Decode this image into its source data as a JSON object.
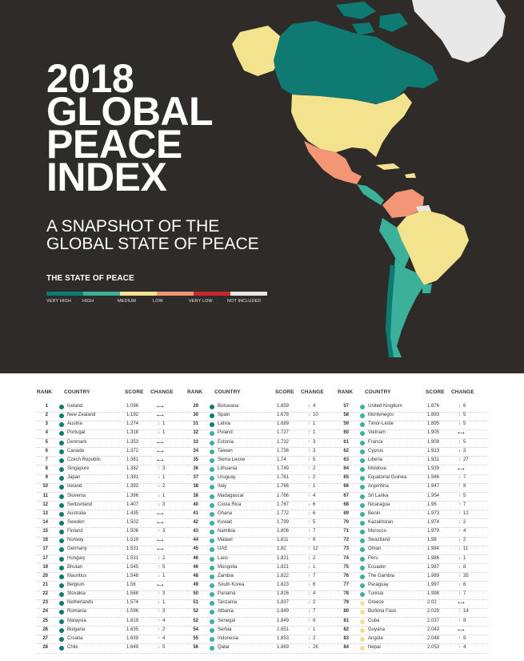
{
  "header": {
    "title_lines": [
      "2018",
      "GLOBAL",
      "PEACE",
      "INDEX"
    ],
    "subtitle_lines": [
      "A SNAPSHOT OF THE",
      "GLOBAL STATE OF PEACE"
    ],
    "legend_title": "THE STATE OF PEACE",
    "legend": [
      {
        "label": "VERY HIGH",
        "color": "#0e7a72"
      },
      {
        "label": "HIGH",
        "color": "#3bb199"
      },
      {
        "label": "MEDIUM",
        "color": "#f3e38e"
      },
      {
        "label": "LOW",
        "color": "#f29676"
      },
      {
        "label": "VERY LOW",
        "color": "#c8272e"
      },
      {
        "label": "NOT INCLUDED",
        "color": "#e8e8e8"
      }
    ]
  },
  "table": {
    "headers": {
      "rank": "RANK",
      "country": "COUNTRY",
      "score": "SCORE",
      "change": "CHANGE"
    },
    "columns": [
      [
        {
          "rank": "1",
          "country": "Iceland",
          "score": "1.096",
          "change": "",
          "dir": "flat",
          "color": "#0e7a72"
        },
        {
          "rank": "2",
          "country": "New Zealand",
          "score": "1.192",
          "change": "",
          "dir": "flat",
          "color": "#0e7a72"
        },
        {
          "rank": "3",
          "country": "Austria",
          "score": "1.274",
          "change": "1",
          "dir": "down",
          "color": "#0e7a72"
        },
        {
          "rank": "4",
          "country": "Portugal",
          "score": "1.318",
          "change": "1",
          "dir": "down",
          "color": "#0e7a72"
        },
        {
          "rank": "5",
          "country": "Denmark",
          "score": "1.353",
          "change": "",
          "dir": "flat",
          "color": "#0e7a72"
        },
        {
          "rank": "6",
          "country": "Canada",
          "score": "1.372",
          "change": "",
          "dir": "flat",
          "color": "#0e7a72"
        },
        {
          "rank": "7",
          "country": "Czech Republic",
          "score": "1.381",
          "change": "",
          "dir": "flat",
          "color": "#0e7a72"
        },
        {
          "rank": "8",
          "country": "Singapore",
          "score": "1.382",
          "change": "3",
          "dir": "up",
          "color": "#0e7a72"
        },
        {
          "rank": "9",
          "country": "Japan",
          "score": "1.391",
          "change": "1",
          "dir": "down",
          "color": "#0e7a72"
        },
        {
          "rank": "10",
          "country": "Ireland",
          "score": "1.393",
          "change": "2",
          "dir": "down",
          "color": "#0e7a72"
        },
        {
          "rank": "11",
          "country": "Slovenia",
          "score": "1.396",
          "change": "1",
          "dir": "down",
          "color": "#0e7a72"
        },
        {
          "rank": "12",
          "country": "Switzerland",
          "score": "1.407",
          "change": "3",
          "dir": "down",
          "color": "#0e7a72"
        },
        {
          "rank": "13",
          "country": "Australia",
          "score": "1.435",
          "change": "",
          "dir": "flat",
          "color": "#0e7a72"
        },
        {
          "rank": "14",
          "country": "Sweden",
          "score": "1.502",
          "change": "",
          "dir": "flat",
          "color": "#0e7a72"
        },
        {
          "rank": "15",
          "country": "Finland",
          "score": "1.506",
          "change": "3",
          "dir": "up",
          "color": "#0e7a72"
        },
        {
          "rank": "16",
          "country": "Norway",
          "score": "1.519",
          "change": "",
          "dir": "flat",
          "color": "#0e7a72"
        },
        {
          "rank": "17",
          "country": "Germany",
          "score": "1.531",
          "change": "",
          "dir": "flat",
          "color": "#0e7a72"
        },
        {
          "rank": "17",
          "country": "Hungary",
          "score": "1.531",
          "change": "2",
          "dir": "down",
          "color": "#0e7a72"
        },
        {
          "rank": "19",
          "country": "Bhutan",
          "score": "1.545",
          "change": "5",
          "dir": "up",
          "color": "#0e7a72"
        },
        {
          "rank": "20",
          "country": "Mauritius",
          "score": "1.548",
          "change": "1",
          "dir": "down",
          "color": "#0e7a72"
        },
        {
          "rank": "21",
          "country": "Belgium",
          "score": "1.56",
          "change": "",
          "dir": "flat",
          "color": "#0e7a72"
        },
        {
          "rank": "22",
          "country": "Slovakia",
          "score": "1.568",
          "change": "3",
          "dir": "up",
          "color": "#0e7a72"
        },
        {
          "rank": "23",
          "country": "Netherlands",
          "score": "1.574",
          "change": "1",
          "dir": "down",
          "color": "#0e7a72"
        },
        {
          "rank": "24",
          "country": "Romania",
          "score": "1.596",
          "change": "3",
          "dir": "up",
          "color": "#0e7a72"
        },
        {
          "rank": "25",
          "country": "Malaysia",
          "score": "1.619",
          "change": "4",
          "dir": "up",
          "color": "#0e7a72"
        },
        {
          "rank": "26",
          "country": "Bulgaria",
          "score": "1.635",
          "change": "2",
          "dir": "up",
          "color": "#0e7a72"
        },
        {
          "rank": "27",
          "country": "Croatia",
          "score": "1.639",
          "change": "4",
          "dir": "up",
          "color": "#0e7a72"
        },
        {
          "rank": "28",
          "country": "Chile",
          "score": "1.649",
          "change": "5",
          "dir": "down",
          "color": "#0e7a72"
        }
      ],
      [
        {
          "rank": "29",
          "country": "Botswana",
          "score": "1.659",
          "change": "4",
          "dir": "down",
          "color": "#0e7a72"
        },
        {
          "rank": "30",
          "country": "Spain",
          "score": "1.678",
          "change": "10",
          "dir": "down",
          "color": "#0e7a72"
        },
        {
          "rank": "31",
          "country": "Latvia",
          "score": "1.689",
          "change": "1",
          "dir": "up",
          "color": "#0e7a72"
        },
        {
          "rank": "32",
          "country": "Poland",
          "score": "1.727",
          "change": "1",
          "dir": "up",
          "color": "#3bb199"
        },
        {
          "rank": "33",
          "country": "Estonia",
          "score": "1.732",
          "change": "3",
          "dir": "up",
          "color": "#3bb199"
        },
        {
          "rank": "34",
          "country": "Taiwan",
          "score": "1.736",
          "change": "3",
          "dir": "up",
          "color": "#3bb199"
        },
        {
          "rank": "35",
          "country": "Sierra Leone",
          "score": "1.74",
          "change": "5",
          "dir": "up",
          "color": "#3bb199"
        },
        {
          "rank": "36",
          "country": "Lithuania",
          "score": "1.749",
          "change": "2",
          "dir": "up",
          "color": "#3bb199"
        },
        {
          "rank": "37",
          "country": "Uruguay",
          "score": "1.761",
          "change": "2",
          "dir": "down",
          "color": "#3bb199"
        },
        {
          "rank": "38",
          "country": "Italy",
          "score": "1.766",
          "change": "1",
          "dir": "up",
          "color": "#3bb199"
        },
        {
          "rank": "38",
          "country": "Madagascar",
          "score": "1.766",
          "change": "4",
          "dir": "up",
          "color": "#3bb199"
        },
        {
          "rank": "40",
          "country": "Costa Rica",
          "score": "1.767",
          "change": "6",
          "dir": "down",
          "color": "#3bb199"
        },
        {
          "rank": "41",
          "country": "Ghana",
          "score": "1.772",
          "change": "6",
          "dir": "down",
          "color": "#3bb199"
        },
        {
          "rank": "42",
          "country": "Kuwait",
          "score": "1.799",
          "change": "5",
          "dir": "up",
          "color": "#3bb199"
        },
        {
          "rank": "43",
          "country": "Namibia",
          "score": "1.806",
          "change": "7",
          "dir": "up",
          "color": "#3bb199"
        },
        {
          "rank": "44",
          "country": "Malawi",
          "score": "1.811",
          "change": "8",
          "dir": "up",
          "color": "#3bb199"
        },
        {
          "rank": "45",
          "country": "UAE",
          "score": "1.82",
          "change": "12",
          "dir": "up",
          "color": "#3bb199"
        },
        {
          "rank": "46",
          "country": "Laos",
          "score": "1.821",
          "change": "2",
          "dir": "down",
          "color": "#3bb199"
        },
        {
          "rank": "46",
          "country": "Mongolia",
          "score": "1.821",
          "change": "1",
          "dir": "down",
          "color": "#3bb199"
        },
        {
          "rank": "48",
          "country": "Zambia",
          "score": "1.822",
          "change": "7",
          "dir": "up",
          "color": "#3bb199"
        },
        {
          "rank": "49",
          "country": "South Korea",
          "score": "1.823",
          "change": "6",
          "dir": "down",
          "color": "#3bb199"
        },
        {
          "rank": "50",
          "country": "Panama",
          "score": "1.826",
          "change": "4",
          "dir": "down",
          "color": "#3bb199"
        },
        {
          "rank": "51",
          "country": "Tanzania",
          "score": "1.837",
          "change": "2",
          "dir": "down",
          "color": "#3bb199"
        },
        {
          "rank": "52",
          "country": "Albania",
          "score": "1.849",
          "change": "7",
          "dir": "down",
          "color": "#3bb199"
        },
        {
          "rank": "52",
          "country": "Senegal",
          "score": "1.849",
          "change": "9",
          "dir": "up",
          "color": "#3bb199"
        },
        {
          "rank": "54",
          "country": "Serbia",
          "score": "1.851",
          "change": "1",
          "dir": "up",
          "color": "#3bb199"
        },
        {
          "rank": "55",
          "country": "Indonesia",
          "score": "1.853",
          "change": "2",
          "dir": "down",
          "color": "#3bb199"
        },
        {
          "rank": "56",
          "country": "Qatar",
          "score": "1.869",
          "change": "26",
          "dir": "down",
          "color": "#3bb199"
        }
      ],
      [
        {
          "rank": "57",
          "country": "United Kingdom",
          "score": "1.876",
          "change": "6",
          "dir": "down",
          "color": "#3bb199"
        },
        {
          "rank": "58",
          "country": "Montenegro",
          "score": "1.893",
          "change": "5",
          "dir": "down",
          "color": "#3bb199"
        },
        {
          "rank": "59",
          "country": "Timor-Leste",
          "score": "1.895",
          "change": "5",
          "dir": "down",
          "color": "#3bb199"
        },
        {
          "rank": "60",
          "country": "Vietnam",
          "score": "1.905",
          "change": "",
          "dir": "flat",
          "color": "#3bb199"
        },
        {
          "rank": "61",
          "country": "France",
          "score": "1.909",
          "change": "5",
          "dir": "down",
          "color": "#3bb199"
        },
        {
          "rank": "62",
          "country": "Cyprus",
          "score": "1.913",
          "change": "3",
          "dir": "down",
          "color": "#3bb199"
        },
        {
          "rank": "63",
          "country": "Liberia",
          "score": "1.931",
          "change": "27",
          "dir": "up",
          "color": "#3bb199"
        },
        {
          "rank": "64",
          "country": "Moldova",
          "score": "1.939",
          "change": "",
          "dir": "flat",
          "color": "#3bb199"
        },
        {
          "rank": "65",
          "country": "Equatorial Guinea",
          "score": "1.946",
          "change": "7",
          "dir": "down",
          "color": "#3bb199"
        },
        {
          "rank": "66",
          "country": "Argentina",
          "score": "1.947",
          "change": "8",
          "dir": "up",
          "color": "#3bb199"
        },
        {
          "rank": "67",
          "country": "Sri Lanka",
          "score": "1.954",
          "change": "5",
          "dir": "up",
          "color": "#3bb199"
        },
        {
          "rank": "68",
          "country": "Nicaragua",
          "score": "1.96",
          "change": "7",
          "dir": "up",
          "color": "#3bb199"
        },
        {
          "rank": "69",
          "country": "Benin",
          "score": "1.973",
          "change": "12",
          "dir": "up",
          "color": "#3bb199"
        },
        {
          "rank": "70",
          "country": "Kazakhstan",
          "score": "1.974",
          "change": "2",
          "dir": "down",
          "color": "#3bb199"
        },
        {
          "rank": "71",
          "country": "Morocco",
          "score": "1.979",
          "change": "4",
          "dir": "up",
          "color": "#3bb199"
        },
        {
          "rank": "72",
          "country": "Swaziland",
          "score": "1.98",
          "change": "2",
          "dir": "down",
          "color": "#3bb199"
        },
        {
          "rank": "73",
          "country": "Oman",
          "score": "1.984",
          "change": "11",
          "dir": "down",
          "color": "#3bb199"
        },
        {
          "rank": "74",
          "country": "Peru",
          "score": "1.986",
          "change": "1",
          "dir": "down",
          "color": "#3bb199"
        },
        {
          "rank": "75",
          "country": "Ecuador",
          "score": "1.987",
          "change": "8",
          "dir": "down",
          "color": "#3bb199"
        },
        {
          "rank": "76",
          "country": "The Gambia",
          "score": "1.989",
          "change": "35",
          "dir": "up",
          "color": "#3bb199"
        },
        {
          "rank": "77",
          "country": "Paraguay",
          "score": "1.997",
          "change": "8",
          "dir": "down",
          "color": "#3bb199"
        },
        {
          "rank": "78",
          "country": "Tunisia",
          "score": "1.998",
          "change": "7",
          "dir": "down",
          "color": "#3bb199"
        },
        {
          "rank": "79",
          "country": "Greece",
          "score": "2.02",
          "change": "",
          "dir": "flat",
          "color": "#f3e38e"
        },
        {
          "rank": "80",
          "country": "Burkina Faso",
          "score": "2.029",
          "change": "14",
          "dir": "up",
          "color": "#f3e38e"
        },
        {
          "rank": "81",
          "country": "Cuba",
          "score": "2.037",
          "change": "8",
          "dir": "up",
          "color": "#f3e38e"
        },
        {
          "rank": "82",
          "country": "Guyana",
          "score": "2.043",
          "change": "",
          "dir": "flat",
          "color": "#f3e38e"
        },
        {
          "rank": "83",
          "country": "Angola",
          "score": "2.048",
          "change": "9",
          "dir": "up",
          "color": "#f3e38e"
        },
        {
          "rank": "84",
          "country": "Nepal",
          "score": "2.053",
          "change": "4",
          "dir": "up",
          "color": "#f3e38e"
        }
      ]
    ]
  }
}
